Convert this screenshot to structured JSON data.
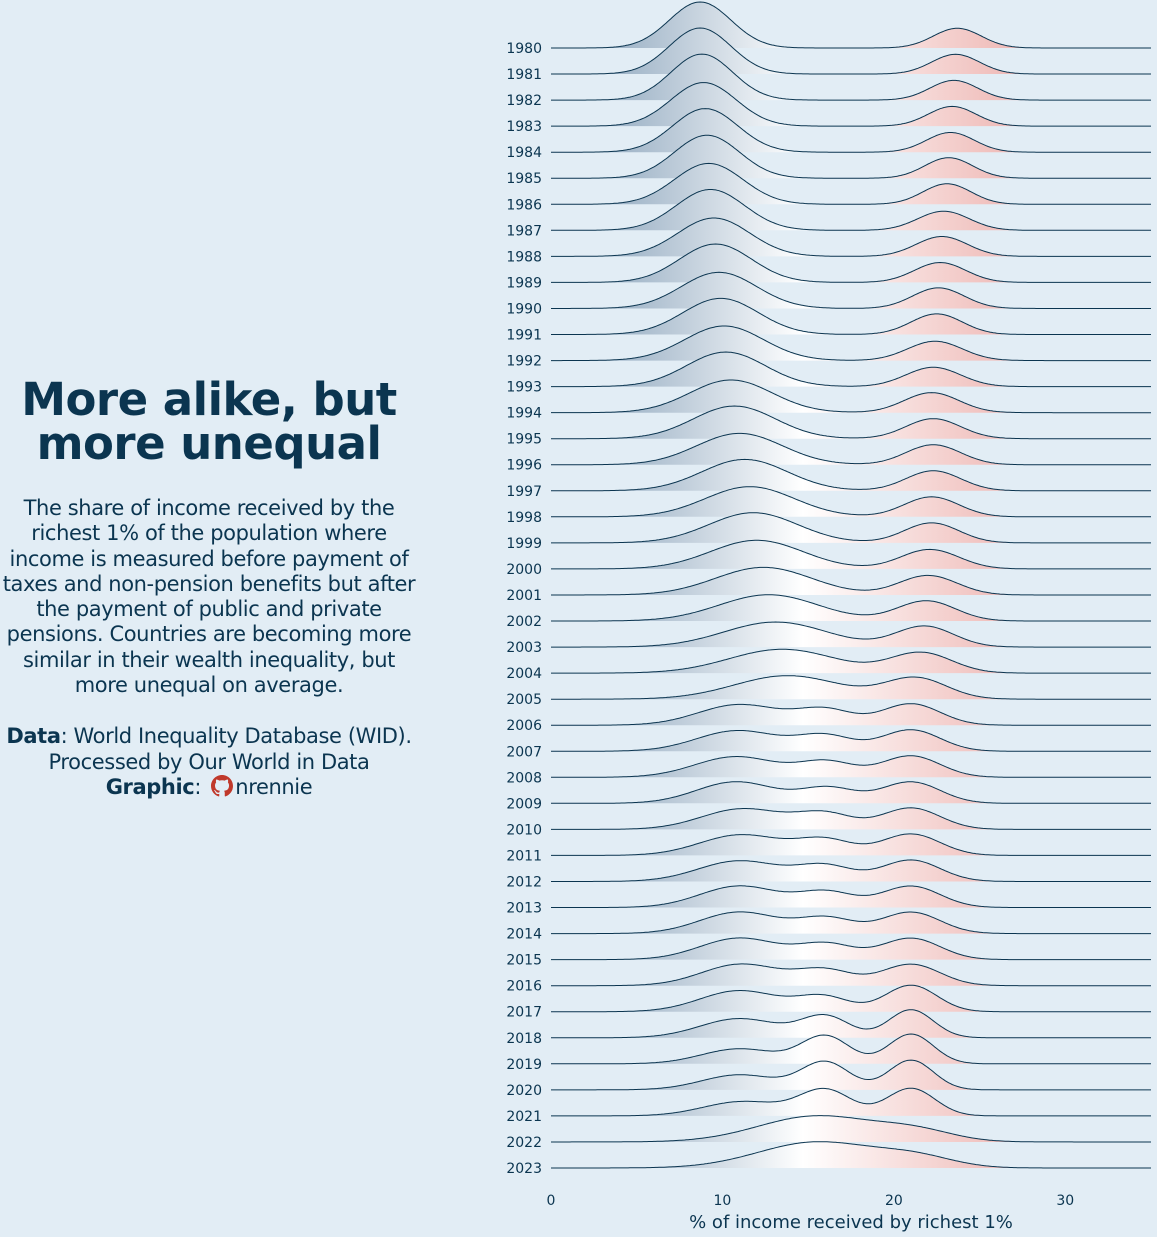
{
  "left_panel": {
    "title_line1": "More alike, but",
    "title_line2": "more unequal",
    "subtitle": "The share of income received by the richest 1% of the population where income is measured before payment of taxes and non-pension benefits but after the payment of public and private pensions. Countries are becoming more similar in their wealth inequality, but more unequal on average.",
    "data_label": "Data",
    "data_text": ": World Inequality Database (WID). Processed by Our World in Data",
    "graphic_label": "Graphic",
    "graphic_sep": ":",
    "graphic_handle": "nrennie",
    "icon": "github-icon"
  },
  "colors": {
    "background": "#e2edf5",
    "text": "#0b3550",
    "low": "#7b98b3",
    "mid": "#ffffff",
    "high": "#e48d88",
    "outline": "#0b3550"
  },
  "chart_data": {
    "type": "ridgeline",
    "title": "More alike, but more unequal",
    "xlabel": "% of income received by richest 1%",
    "x_ticks": [
      0,
      10,
      20,
      30
    ],
    "xlim": [
      0,
      35
    ],
    "ridges": [
      {
        "year": "1980",
        "components": [
          [
            0.75,
            8.7,
            1.8
          ],
          [
            0.25,
            23.7,
            1.4
          ]
        ]
      },
      {
        "year": "1981",
        "components": [
          [
            0.75,
            8.7,
            1.8
          ],
          [
            0.25,
            23.6,
            1.4
          ]
        ]
      },
      {
        "year": "1982",
        "components": [
          [
            0.75,
            8.8,
            1.8
          ],
          [
            0.25,
            23.5,
            1.4
          ]
        ]
      },
      {
        "year": "1983",
        "components": [
          [
            0.75,
            8.9,
            1.9
          ],
          [
            0.25,
            23.4,
            1.4
          ]
        ]
      },
      {
        "year": "1984",
        "components": [
          [
            0.75,
            9.0,
            1.9
          ],
          [
            0.25,
            23.3,
            1.4
          ]
        ]
      },
      {
        "year": "1985",
        "components": [
          [
            0.74,
            9.1,
            1.9
          ],
          [
            0.26,
            23.2,
            1.4
          ]
        ]
      },
      {
        "year": "1986",
        "components": [
          [
            0.74,
            9.2,
            2.0
          ],
          [
            0.26,
            23.1,
            1.4
          ]
        ]
      },
      {
        "year": "1987",
        "components": [
          [
            0.74,
            9.3,
            2.0
          ],
          [
            0.26,
            22.9,
            1.5
          ]
        ]
      },
      {
        "year": "1988",
        "components": [
          [
            0.73,
            9.5,
            2.1
          ],
          [
            0.27,
            22.8,
            1.5
          ]
        ]
      },
      {
        "year": "1989",
        "components": [
          [
            0.73,
            9.6,
            2.1
          ],
          [
            0.27,
            22.7,
            1.5
          ]
        ]
      },
      {
        "year": "1990",
        "components": [
          [
            0.72,
            9.8,
            2.2
          ],
          [
            0.28,
            22.6,
            1.5
          ]
        ]
      },
      {
        "year": "1991",
        "components": [
          [
            0.72,
            9.9,
            2.2
          ],
          [
            0.28,
            22.5,
            1.5
          ]
        ]
      },
      {
        "year": "1992",
        "components": [
          [
            0.72,
            10.1,
            2.3
          ],
          [
            0.28,
            22.4,
            1.6
          ]
        ]
      },
      {
        "year": "1993",
        "components": [
          [
            0.72,
            10.2,
            2.3
          ],
          [
            0.28,
            22.3,
            1.6
          ]
        ]
      },
      {
        "year": "1994",
        "components": [
          [
            0.71,
            10.5,
            2.4
          ],
          [
            0.29,
            22.2,
            1.6
          ]
        ]
      },
      {
        "year": "1995",
        "components": [
          [
            0.71,
            10.7,
            2.4
          ],
          [
            0.29,
            22.3,
            1.6
          ]
        ]
      },
      {
        "year": "1996",
        "components": [
          [
            0.71,
            11.0,
            2.5
          ],
          [
            0.29,
            22.3,
            1.6
          ]
        ]
      },
      {
        "year": "1997",
        "components": [
          [
            0.71,
            11.3,
            2.5
          ],
          [
            0.29,
            22.3,
            1.6
          ]
        ]
      },
      {
        "year": "1998",
        "components": [
          [
            0.71,
            11.6,
            2.6
          ],
          [
            0.29,
            22.2,
            1.6
          ]
        ]
      },
      {
        "year": "1999",
        "components": [
          [
            0.71,
            11.8,
            2.6
          ],
          [
            0.29,
            22.2,
            1.6
          ]
        ]
      },
      {
        "year": "2000",
        "components": [
          [
            0.7,
            12.0,
            2.7
          ],
          [
            0.3,
            22.1,
            1.7
          ]
        ]
      },
      {
        "year": "2001",
        "components": [
          [
            0.7,
            12.4,
            2.8
          ],
          [
            0.3,
            22.0,
            1.7
          ]
        ]
      },
      {
        "year": "2002",
        "components": [
          [
            0.69,
            12.7,
            2.9
          ],
          [
            0.31,
            21.9,
            1.7
          ]
        ]
      },
      {
        "year": "2003",
        "components": [
          [
            0.68,
            13.1,
            3.0
          ],
          [
            0.32,
            21.8,
            1.7
          ]
        ]
      },
      {
        "year": "2004",
        "components": [
          [
            0.67,
            13.5,
            3.1
          ],
          [
            0.33,
            21.6,
            1.8
          ]
        ]
      },
      {
        "year": "2005",
        "components": [
          [
            0.66,
            13.8,
            3.1
          ],
          [
            0.34,
            21.3,
            1.8
          ]
        ]
      },
      {
        "year": "2006",
        "components": [
          [
            0.45,
            11.0,
            2.4
          ],
          [
            0.22,
            16.0,
            1.6
          ],
          [
            0.33,
            21.0,
            1.7
          ]
        ]
      },
      {
        "year": "2007",
        "components": [
          [
            0.45,
            10.9,
            2.4
          ],
          [
            0.22,
            16.0,
            1.6
          ],
          [
            0.33,
            21.0,
            1.7
          ]
        ]
      },
      {
        "year": "2008",
        "components": [
          [
            0.45,
            10.8,
            2.4
          ],
          [
            0.22,
            16.1,
            1.6
          ],
          [
            0.33,
            21.0,
            1.7
          ]
        ]
      },
      {
        "year": "2009",
        "components": [
          [
            0.45,
            10.8,
            2.3
          ],
          [
            0.22,
            16.2,
            1.6
          ],
          [
            0.33,
            21.0,
            1.7
          ]
        ]
      },
      {
        "year": "2010",
        "components": [
          [
            0.45,
            11.2,
            2.4
          ],
          [
            0.22,
            16.0,
            1.6
          ],
          [
            0.33,
            21.0,
            1.7
          ]
        ]
      },
      {
        "year": "2011",
        "components": [
          [
            0.45,
            11.1,
            2.4
          ],
          [
            0.22,
            16.0,
            1.6
          ],
          [
            0.33,
            21.0,
            1.7
          ]
        ]
      },
      {
        "year": "2012",
        "components": [
          [
            0.45,
            11.0,
            2.4
          ],
          [
            0.22,
            16.0,
            1.6
          ],
          [
            0.33,
            21.0,
            1.7
          ]
        ]
      },
      {
        "year": "2013",
        "components": [
          [
            0.45,
            11.0,
            2.3
          ],
          [
            0.22,
            16.1,
            1.6
          ],
          [
            0.33,
            21.0,
            1.7
          ]
        ]
      },
      {
        "year": "2014",
        "components": [
          [
            0.45,
            11.0,
            2.3
          ],
          [
            0.22,
            16.1,
            1.6
          ],
          [
            0.33,
            21.0,
            1.7
          ]
        ]
      },
      {
        "year": "2015",
        "components": [
          [
            0.45,
            11.0,
            2.3
          ],
          [
            0.22,
            16.1,
            1.6
          ],
          [
            0.33,
            21.0,
            1.7
          ]
        ]
      },
      {
        "year": "2016",
        "components": [
          [
            0.45,
            11.1,
            2.3
          ],
          [
            0.22,
            16.0,
            1.6
          ],
          [
            0.33,
            21.0,
            1.7
          ]
        ]
      },
      {
        "year": "2017",
        "components": [
          [
            0.44,
            11.0,
            2.3
          ],
          [
            0.2,
            15.9,
            1.5
          ],
          [
            0.36,
            21.0,
            1.5
          ]
        ]
      },
      {
        "year": "2018",
        "components": [
          [
            0.4,
            11.0,
            2.3
          ],
          [
            0.27,
            16.0,
            1.4
          ],
          [
            0.33,
            21.0,
            1.3
          ]
        ]
      },
      {
        "year": "2019",
        "components": [
          [
            0.3,
            11.0,
            2.2
          ],
          [
            0.35,
            16.0,
            1.4
          ],
          [
            0.35,
            21.0,
            1.3
          ]
        ]
      },
      {
        "year": "2020",
        "components": [
          [
            0.3,
            11.0,
            2.2
          ],
          [
            0.35,
            16.0,
            1.4
          ],
          [
            0.35,
            21.0,
            1.3
          ]
        ]
      },
      {
        "year": "2021",
        "components": [
          [
            0.3,
            11.2,
            2.3
          ],
          [
            0.35,
            16.0,
            1.5
          ],
          [
            0.35,
            21.0,
            1.4
          ]
        ]
      },
      {
        "year": "2022",
        "components": [
          [
            0.8,
            15.5,
            3.4
          ],
          [
            0.2,
            21.3,
            2.2
          ]
        ]
      },
      {
        "year": "2023",
        "components": [
          [
            0.8,
            15.5,
            3.4
          ],
          [
            0.2,
            21.3,
            2.2
          ]
        ]
      }
    ]
  }
}
